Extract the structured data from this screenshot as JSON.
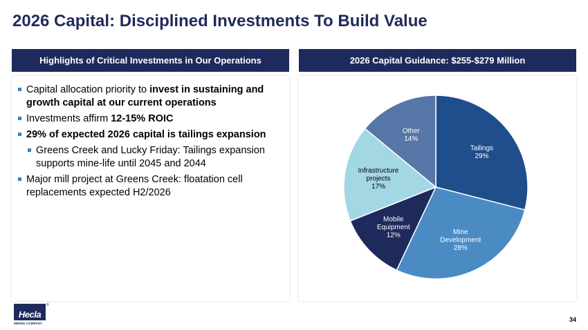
{
  "slide": {
    "title": "2026 Capital: Disciplined Investments To Build Value",
    "page_number": "34"
  },
  "left_panel": {
    "header": "Highlights of Critical Investments in Our Operations",
    "bullets": [
      {
        "pre": "Capital allocation priority to ",
        "bold": "invest in sustaining and growth capital at our current operations",
        "post": ""
      },
      {
        "pre": "Investments affirm ",
        "bold": "12-15% ROIC",
        "post": ""
      },
      {
        "pre": "",
        "bold": "29% of expected 2026 capital is tailings expansion",
        "post": ""
      },
      {
        "pre": "Greens Creek and Lucky Friday: Tailings expansion supports mine-life until 2045 and 2044",
        "bold": "",
        "post": ""
      },
      {
        "pre": "Major mill project at Greens Creek: floatation cell replacements expected H2/2026",
        "bold": "",
        "post": ""
      }
    ]
  },
  "right_panel": {
    "header": "2026 Capital Guidance: $255-$279 Million"
  },
  "chart_data": {
    "type": "pie",
    "title": "",
    "slices": [
      {
        "label": [
          "Tailings"
        ],
        "value": 29,
        "value_label": "29%",
        "color": "#1f4e8c",
        "text_color": "#ffffff"
      },
      {
        "label": [
          "Mine",
          "Development"
        ],
        "value": 28,
        "value_label": "28%",
        "color": "#4a8bc4",
        "text_color": "#ffffff"
      },
      {
        "label": [
          "Mobile",
          "Equipment"
        ],
        "value": 12,
        "value_label": "12%",
        "color": "#1f2a5c",
        "text_color": "#ffffff"
      },
      {
        "label": [
          "Infrastructure",
          "projects"
        ],
        "value": 17,
        "value_label": "17%",
        "color": "#a3d7e4",
        "text_color": "#000000"
      },
      {
        "label": [
          "Other"
        ],
        "value": 14,
        "value_label": "14%",
        "color": "#5676a8",
        "text_color": "#ffffff"
      }
    ],
    "start_angle": "12 o'clock",
    "direction": "clockwise",
    "labels_inside": true
  },
  "logo": {
    "name": "Hecla",
    "registered": "®",
    "subtitle": "MINING COMPANY"
  }
}
